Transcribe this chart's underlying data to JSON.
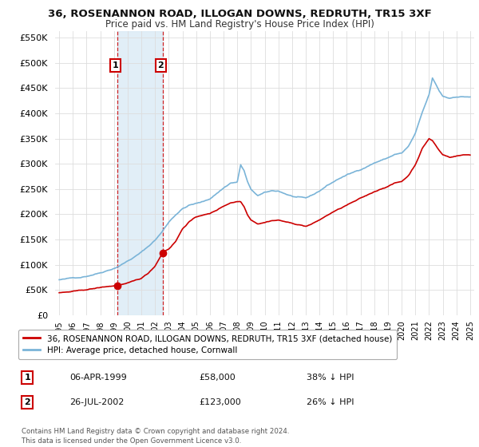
{
  "title": "36, ROSENANNON ROAD, ILLOGAN DOWNS, REDRUTH, TR15 3XF",
  "subtitle": "Price paid vs. HM Land Registry's House Price Index (HPI)",
  "hpi_label": "HPI: Average price, detached house, Cornwall",
  "property_label": "36, ROSENANNON ROAD, ILLOGAN DOWNS, REDRUTH, TR15 3XF (detached house)",
  "copyright_text": "Contains HM Land Registry data © Crown copyright and database right 2024.\nThis data is licensed under the Open Government Licence v3.0.",
  "transactions": [
    {
      "num": 1,
      "date": "06-APR-1999",
      "price": "£58,000",
      "change": "38% ↓ HPI",
      "year": 1999.27,
      "value": 58000
    },
    {
      "num": 2,
      "date": "26-JUL-2002",
      "price": "£123,000",
      "change": "26% ↓ HPI",
      "year": 2002.57,
      "value": 123000
    }
  ],
  "hpi_color": "#7ab4d8",
  "property_color": "#cc0000",
  "shaded_region_color": "#daeaf5",
  "shaded_region_alpha": 0.8,
  "ylim": [
    0,
    562500
  ],
  "yticks": [
    0,
    50000,
    100000,
    150000,
    200000,
    250000,
    300000,
    350000,
    400000,
    450000,
    500000,
    550000
  ],
  "xlim_start": 1994.7,
  "xlim_end": 2025.3,
  "xticks": [
    1995,
    1996,
    1997,
    1998,
    1999,
    2000,
    2001,
    2002,
    2003,
    2004,
    2005,
    2006,
    2007,
    2008,
    2009,
    2010,
    2011,
    2012,
    2013,
    2014,
    2015,
    2016,
    2017,
    2018,
    2019,
    2020,
    2021,
    2022,
    2023,
    2024,
    2025
  ],
  "background_color": "#ffffff",
  "grid_color": "#dddddd"
}
